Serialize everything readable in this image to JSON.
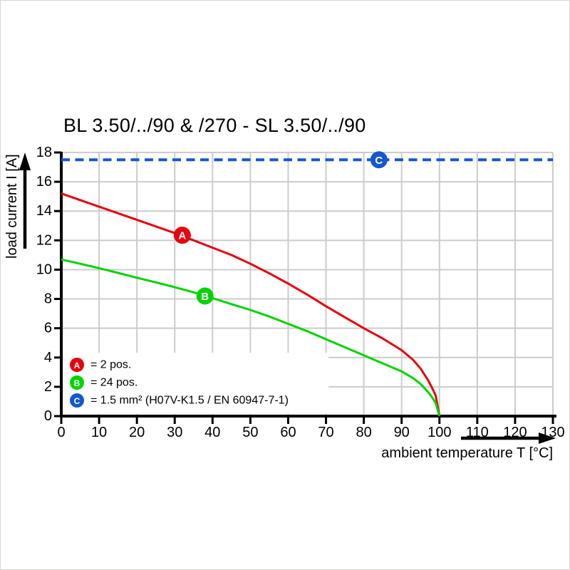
{
  "chart_data": {
    "type": "line",
    "title": "BL 3.50/../90 & /270 - SL 3.50/../90",
    "xlabel": "ambient temperature T [°C]",
    "ylabel": "load current I [A]",
    "xlim": [
      0,
      130
    ],
    "ylim": [
      0,
      18
    ],
    "x_ticks": [
      0,
      10,
      20,
      30,
      40,
      50,
      60,
      70,
      80,
      90,
      100,
      110,
      120,
      130
    ],
    "y_ticks": [
      0,
      2,
      4,
      6,
      8,
      10,
      12,
      14,
      16,
      18
    ],
    "grid": true,
    "legend_position": "inside-bottom-left",
    "colors": {
      "grid": "#cccccc",
      "axis": "#000000",
      "text": "#000000",
      "background": "#ffffff"
    },
    "series": [
      {
        "id": "A",
        "label": "= 2 pos.",
        "color": "#e8000d",
        "dash": false,
        "marker": {
          "letter": "A",
          "x": 32,
          "y": 12.35
        },
        "points": [
          [
            0,
            15.2
          ],
          [
            5,
            14.75
          ],
          [
            10,
            14.3
          ],
          [
            15,
            13.85
          ],
          [
            20,
            13.4
          ],
          [
            25,
            12.95
          ],
          [
            30,
            12.5
          ],
          [
            35,
            12.0
          ],
          [
            40,
            11.5
          ],
          [
            45,
            11.0
          ],
          [
            50,
            10.4
          ],
          [
            55,
            9.75
          ],
          [
            60,
            9.05
          ],
          [
            65,
            8.3
          ],
          [
            70,
            7.5
          ],
          [
            75,
            6.75
          ],
          [
            80,
            6.0
          ],
          [
            85,
            5.3
          ],
          [
            90,
            4.5
          ],
          [
            93,
            3.85
          ],
          [
            95,
            3.25
          ],
          [
            97,
            2.45
          ],
          [
            98,
            1.95
          ],
          [
            99,
            1.4
          ],
          [
            100,
            0
          ]
        ]
      },
      {
        "id": "B",
        "label": "= 24 pos.",
        "color": "#00d400",
        "dash": false,
        "marker": {
          "letter": "B",
          "x": 38,
          "y": 8.2
        },
        "points": [
          [
            0,
            10.7
          ],
          [
            5,
            10.4
          ],
          [
            10,
            10.1
          ],
          [
            15,
            9.78
          ],
          [
            20,
            9.45
          ],
          [
            25,
            9.13
          ],
          [
            30,
            8.8
          ],
          [
            35,
            8.45
          ],
          [
            40,
            8.05
          ],
          [
            45,
            7.65
          ],
          [
            50,
            7.25
          ],
          [
            55,
            6.8
          ],
          [
            60,
            6.3
          ],
          [
            65,
            5.8
          ],
          [
            70,
            5.25
          ],
          [
            75,
            4.7
          ],
          [
            80,
            4.15
          ],
          [
            85,
            3.6
          ],
          [
            90,
            3.05
          ],
          [
            93,
            2.6
          ],
          [
            95,
            2.2
          ],
          [
            97,
            1.65
          ],
          [
            98,
            1.3
          ],
          [
            99,
            0.9
          ],
          [
            100,
            0
          ]
        ]
      },
      {
        "id": "C",
        "label": "= 1.5 mm² (H07V-K1.5 / EN 60947-7-1)",
        "color": "#1557d0",
        "dash": true,
        "marker": {
          "letter": "C",
          "x": 84,
          "y": 17.5
        },
        "points": [
          [
            0,
            17.5
          ],
          [
            130,
            17.5
          ]
        ]
      }
    ]
  }
}
